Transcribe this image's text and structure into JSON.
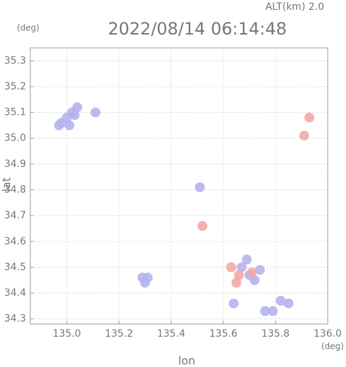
{
  "chart_data": {
    "type": "scatter",
    "title": "2022/08/14 06:14:48",
    "subtitle": "ALT(km) 2.0",
    "y_unit": "(deg)",
    "x_unit": "(deg)",
    "xlabel": "lon",
    "ylabel": "lat",
    "xlim": [
      134.86,
      136.0
    ],
    "ylim": [
      34.28,
      35.35
    ],
    "xticks": [
      {
        "value": 135.0,
        "label": "135.0"
      },
      {
        "value": 135.2,
        "label": "135.2"
      },
      {
        "value": 135.4,
        "label": "135.4"
      },
      {
        "value": 135.6,
        "label": "135.6"
      },
      {
        "value": 135.8,
        "label": "135.8"
      },
      {
        "value": 136.0,
        "label": "136.0"
      }
    ],
    "yticks": [
      {
        "value": 34.3,
        "label": "34.3"
      },
      34.4,
      34.5,
      34.6,
      34.7,
      34.8,
      34.9,
      {
        "value": 35.0,
        "label": "35.0"
      },
      35.1,
      35.2,
      35.3
    ],
    "grid": true,
    "series": [
      {
        "color": "#b4b4ee",
        "x": [
          134.98,
          135.0,
          135.02,
          135.04,
          134.97,
          135.01,
          135.03,
          135.11,
          135.51,
          135.29,
          135.31,
          135.3,
          135.67,
          135.7,
          135.72,
          135.69,
          135.74,
          135.64,
          135.76,
          135.79,
          135.82,
          135.85
        ],
        "values": [
          35.06,
          35.08,
          35.1,
          35.12,
          35.05,
          35.05,
          35.09,
          35.1,
          34.81,
          34.46,
          34.46,
          34.44,
          34.5,
          34.47,
          34.45,
          34.53,
          34.49,
          34.36,
          34.33,
          34.33,
          34.37,
          34.36
        ]
      },
      {
        "color": "#f2a8a8",
        "x": [
          135.93,
          135.91,
          135.52,
          135.63,
          135.66,
          135.71,
          135.65
        ],
        "values": [
          35.08,
          35.01,
          34.66,
          34.5,
          34.47,
          34.48,
          34.44
        ]
      }
    ]
  }
}
